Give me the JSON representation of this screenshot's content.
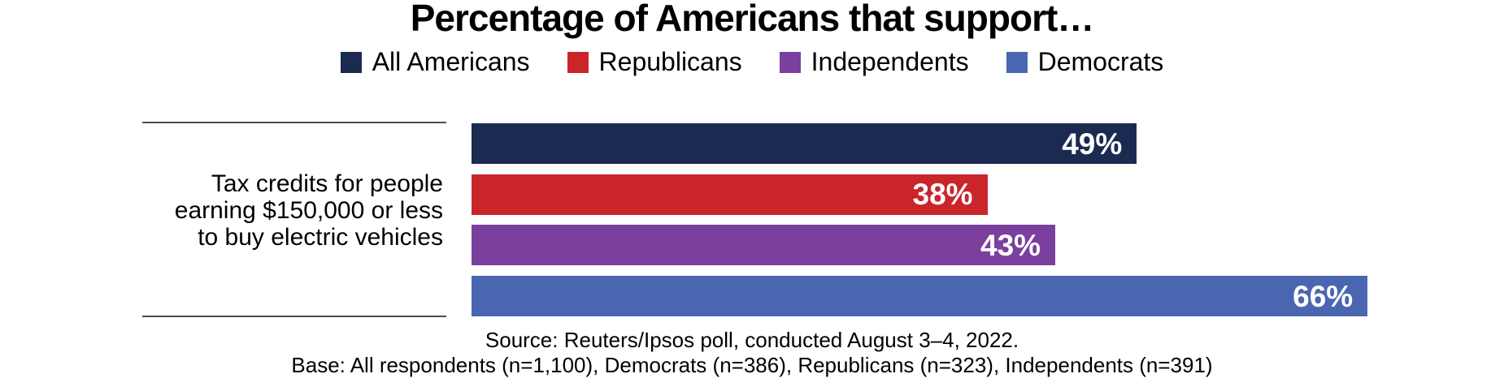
{
  "page": {
    "title": "Percentage of Americans that support…"
  },
  "legend": {
    "items": [
      {
        "label": "All Americans",
        "color": "#1b2a50"
      },
      {
        "label": "Republicans",
        "color": "#c9252b"
      },
      {
        "label": "Independents",
        "color": "#7b3f9e"
      },
      {
        "label": "Democrats",
        "color": "#4a66b0"
      }
    ]
  },
  "category": {
    "lines": [
      "Tax credits for people",
      "earning $150,000 or less",
      "to buy electric vehicles"
    ],
    "full_text": "Tax credits for people earning $150,000 or less to buy electric vehicles"
  },
  "chart_data": {
    "type": "bar",
    "orientation": "horizontal",
    "title": "Percentage of Americans that support…",
    "categories": [
      "Tax credits for people earning $150,000 or less to buy electric vehicles"
    ],
    "series": [
      {
        "name": "All Americans",
        "color": "#1b2a50",
        "values": [
          49
        ]
      },
      {
        "name": "Republicans",
        "color": "#c9252b",
        "values": [
          38
        ]
      },
      {
        "name": "Independents",
        "color": "#7b3f9e",
        "values": [
          43
        ]
      },
      {
        "name": "Democrats",
        "color": "#4a66b0",
        "values": [
          66
        ]
      }
    ],
    "value_unit": "%",
    "bar_labels": [
      "49%",
      "38%",
      "43%",
      "66%"
    ],
    "legend_position": "top",
    "grid": false,
    "axes_visible": false
  },
  "footer": {
    "source_line": "Source: Reuters/Ipsos poll, conducted August 3–4, 2022.",
    "base_line": "Base: All respondents (n=1,100), Democrats (n=386), Republicans (n=323), Independents (n=391)"
  }
}
